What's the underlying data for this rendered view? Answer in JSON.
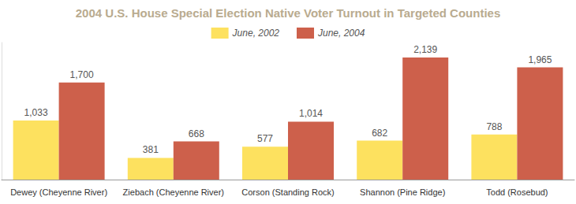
{
  "chart_data": {
    "type": "bar",
    "title": "2004 U.S. House Special Election Native Voter Turnout in Targeted Counties",
    "categories": [
      "Dewey (Cheyenne River)",
      "Ziebach (Cheyenne River)",
      "Corson (Standing Rock)",
      "Shannon (Pine Ridge)",
      "Todd (Rosebud)"
    ],
    "series": [
      {
        "name": "June, 2002",
        "color": "#fde15f",
        "values": [
          1033,
          381,
          577,
          682,
          788
        ],
        "value_labels": [
          "1,033",
          "381",
          "577",
          "682",
          "788"
        ]
      },
      {
        "name": "June, 2004",
        "color": "#cd604b",
        "values": [
          1700,
          668,
          1014,
          2139,
          1965
        ],
        "value_labels": [
          "1,700",
          "668",
          "1,014",
          "2,139",
          "1,965"
        ]
      }
    ],
    "ylim": [
      0,
      2400
    ],
    "yticks": [],
    "grid": false,
    "legend": "top",
    "data_labels": true,
    "tick_labels": "x"
  }
}
